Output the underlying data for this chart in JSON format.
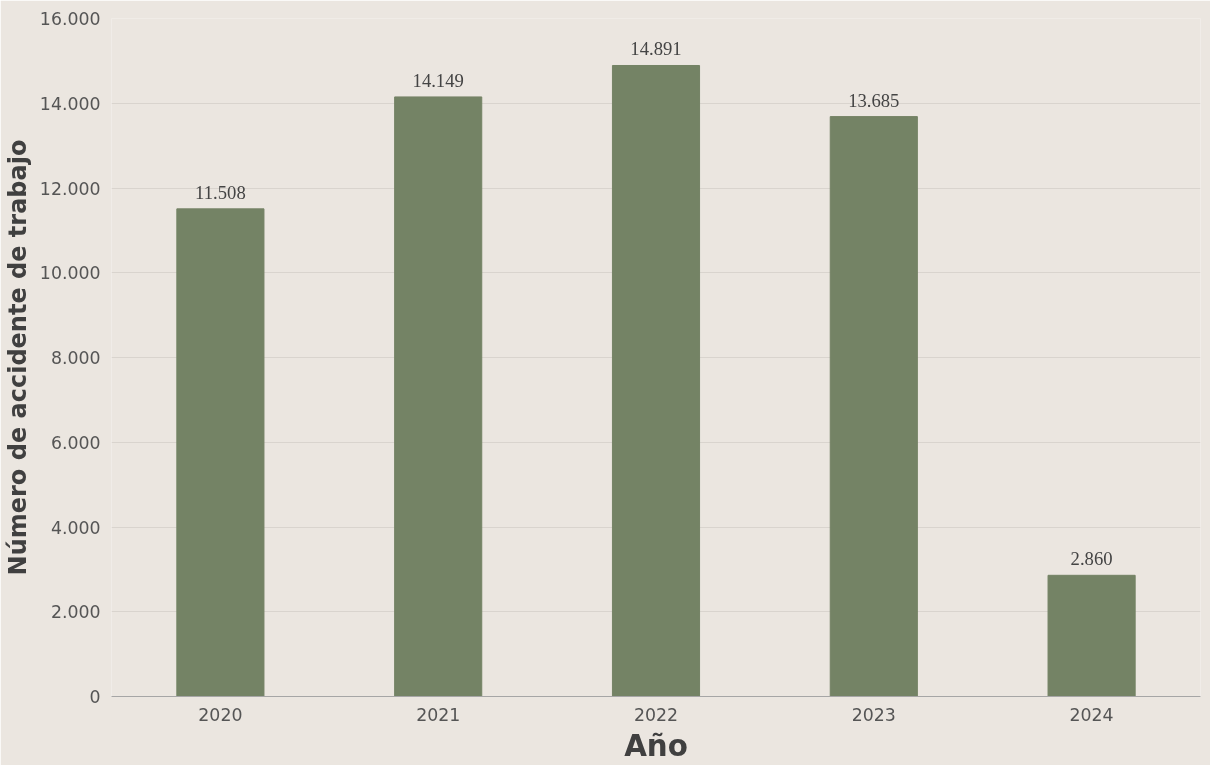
{
  "chart_data": {
    "type": "bar",
    "xlabel": "Año",
    "ylabel": "Número de accidente de trabajo",
    "categories": [
      "2020",
      "2021",
      "2022",
      "2023",
      "2024"
    ],
    "values": [
      11508,
      14149,
      14891,
      13685,
      2860
    ],
    "value_labels": [
      "11.508",
      "14.149",
      "14.891",
      "13.685",
      "2.860"
    ],
    "color": "#748365",
    "ylim": [
      0,
      16000
    ],
    "yticks": [
      {
        "value": 0,
        "label": "0"
      },
      {
        "value": 2000,
        "label": "2.000"
      },
      {
        "value": 4000,
        "label": "4.000"
      },
      {
        "value": 6000,
        "label": "6.000"
      },
      {
        "value": 8000,
        "label": "8.000"
      },
      {
        "value": 10000,
        "label": "10.000"
      },
      {
        "value": 12000,
        "label": "12.000"
      },
      {
        "value": 14000,
        "label": "14.000"
      },
      {
        "value": 16000,
        "label": "16.000"
      }
    ],
    "grid": "y"
  }
}
